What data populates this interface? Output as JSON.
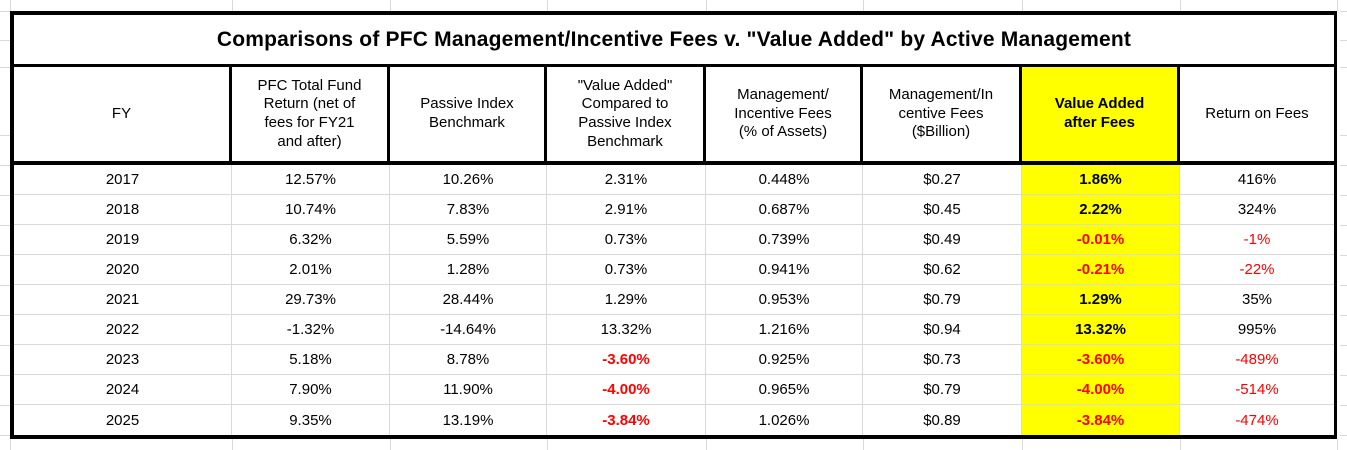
{
  "sheet": {
    "title": "Comparisons of PFC Management/Incentive Fees v. \"Value Added\" by Active Management",
    "columns": [
      {
        "id": "fy",
        "label": "FY"
      },
      {
        "id": "pfc_return",
        "label": [
          "PFC Total Fund",
          "Return (net of",
          "fees for FY21",
          "and after)"
        ]
      },
      {
        "id": "passive",
        "label": [
          "Passive Index",
          "Benchmark"
        ]
      },
      {
        "id": "value_added",
        "label": [
          "\"Value Added\"",
          "Compared to",
          "Passive Index",
          "Benchmark"
        ]
      },
      {
        "id": "fees_pct",
        "label": [
          "Management/",
          "Incentive Fees",
          "(% of Assets)"
        ]
      },
      {
        "id": "fees_bn",
        "label": [
          "Management/In",
          "centive Fees",
          "($Billion)"
        ]
      },
      {
        "id": "va_after_fees",
        "label": [
          "Value Added",
          "after Fees"
        ]
      },
      {
        "id": "return_on_fees",
        "label": "Return on Fees"
      }
    ],
    "rows": [
      {
        "fy": "2017",
        "pfc_return": "12.57%",
        "passive": "10.26%",
        "value_added": "2.31%",
        "fees_pct": "0.448%",
        "fees_bn": "$0.27",
        "va_after_fees": "1.86%",
        "return_on_fees": "416%"
      },
      {
        "fy": "2018",
        "pfc_return": "10.74%",
        "passive": "7.83%",
        "value_added": "2.91%",
        "fees_pct": "0.687%",
        "fees_bn": "$0.45",
        "va_after_fees": "2.22%",
        "return_on_fees": "324%"
      },
      {
        "fy": "2019",
        "pfc_return": "6.32%",
        "passive": "5.59%",
        "value_added": "0.73%",
        "fees_pct": "0.739%",
        "fees_bn": "$0.49",
        "va_after_fees": "-0.01%",
        "return_on_fees": "-1%"
      },
      {
        "fy": "2020",
        "pfc_return": "2.01%",
        "passive": "1.28%",
        "value_added": "0.73%",
        "fees_pct": "0.941%",
        "fees_bn": "$0.62",
        "va_after_fees": "-0.21%",
        "return_on_fees": "-22%"
      },
      {
        "fy": "2021",
        "pfc_return": "29.73%",
        "passive": "28.44%",
        "value_added": "1.29%",
        "fees_pct": "0.953%",
        "fees_bn": "$0.79",
        "va_after_fees": "1.29%",
        "return_on_fees": "35%"
      },
      {
        "fy": "2022",
        "pfc_return": "-1.32%",
        "passive": "-14.64%",
        "value_added": "13.32%",
        "fees_pct": "1.216%",
        "fees_bn": "$0.94",
        "va_after_fees": "13.32%",
        "return_on_fees": "995%"
      },
      {
        "fy": "2023",
        "pfc_return": "5.18%",
        "passive": "8.78%",
        "value_added": "-3.60%",
        "fees_pct": "0.925%",
        "fees_bn": "$0.73",
        "va_after_fees": "-3.60%",
        "return_on_fees": "-489%"
      },
      {
        "fy": "2024",
        "pfc_return": "7.90%",
        "passive": "11.90%",
        "value_added": "-4.00%",
        "fees_pct": "0.965%",
        "fees_bn": "$0.79",
        "va_after_fees": "-4.00%",
        "return_on_fees": "-514%"
      },
      {
        "fy": "2025",
        "pfc_return": "9.35%",
        "passive": "13.19%",
        "value_added": "-3.84%",
        "fees_pct": "1.026%",
        "fees_bn": "$0.89",
        "va_after_fees": "-3.84%",
        "return_on_fees": "-474%"
      }
    ]
  },
  "colors": {
    "highlight_yellow": "#ffff00",
    "negative_red": "#ff0000",
    "table_border": "#000000",
    "gridline_gray": "#d9d9d9"
  }
}
